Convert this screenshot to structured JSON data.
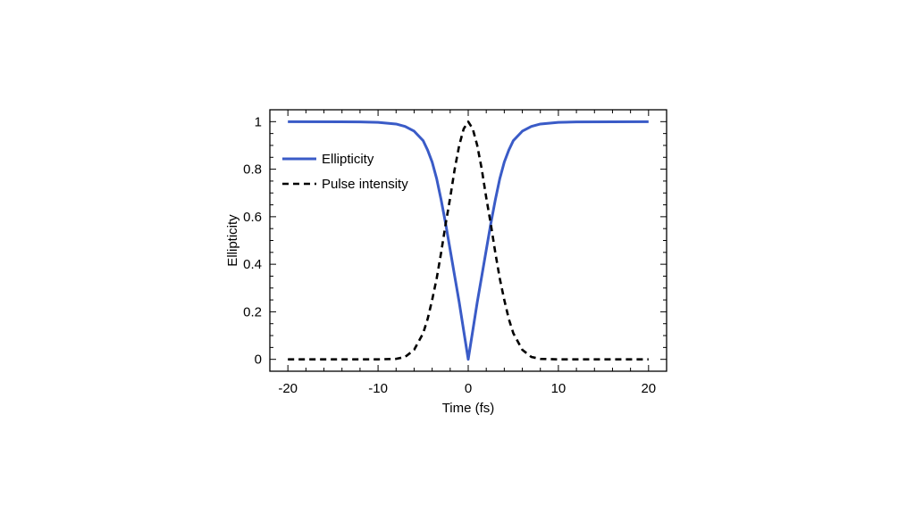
{
  "chart_data": {
    "type": "line",
    "title": "",
    "xlabel": "Time (fs)",
    "ylabel": "Ellipticity",
    "xlim": [
      -22,
      22
    ],
    "ylim": [
      -0.05,
      1.05
    ],
    "xticks": [
      -20,
      -10,
      0,
      10,
      20
    ],
    "xtick_labels": [
      "-20",
      "-10",
      "0",
      "10",
      "20"
    ],
    "yticks": [
      0,
      0.2,
      0.4,
      0.6,
      0.8,
      1
    ],
    "ytick_labels": [
      "0",
      "0.2",
      "0.4",
      "0.6",
      "0.8",
      "1"
    ],
    "grid": false,
    "legend_position": "top-left",
    "series": [
      {
        "name": "Ellipticity",
        "style": "solid",
        "color": "#3a5bc7",
        "x": [
          -20,
          -12,
          -10,
          -8,
          -7,
          -6,
          -5,
          -4.5,
          -4,
          -3.5,
          -3,
          -2.5,
          -2,
          -1.5,
          -1,
          -0.5,
          0,
          0.5,
          1,
          1.5,
          2,
          2.5,
          3,
          3.5,
          4,
          4.5,
          5,
          6,
          7,
          8,
          10,
          12,
          20
        ],
        "y": [
          1.0,
          0.999,
          0.997,
          0.99,
          0.98,
          0.96,
          0.92,
          0.88,
          0.83,
          0.76,
          0.67,
          0.57,
          0.46,
          0.35,
          0.24,
          0.12,
          0.0,
          0.12,
          0.24,
          0.35,
          0.46,
          0.57,
          0.67,
          0.76,
          0.83,
          0.88,
          0.92,
          0.96,
          0.98,
          0.99,
          0.997,
          0.999,
          1.0
        ]
      },
      {
        "name": "Pulse intensity",
        "style": "dashed",
        "color": "#000000",
        "x": [
          -20,
          -10,
          -8,
          -7,
          -6,
          -5,
          -4.5,
          -4,
          -3.5,
          -3,
          -2.5,
          -2,
          -1.5,
          -1,
          -0.5,
          0,
          0.5,
          1,
          1.5,
          2,
          2.5,
          3,
          3.5,
          4,
          4.5,
          5,
          6,
          7,
          8,
          10,
          20
        ],
        "y": [
          0.0,
          0.0,
          0.002,
          0.01,
          0.04,
          0.11,
          0.17,
          0.25,
          0.34,
          0.45,
          0.57,
          0.68,
          0.8,
          0.9,
          0.97,
          1.0,
          0.97,
          0.9,
          0.8,
          0.68,
          0.57,
          0.45,
          0.34,
          0.25,
          0.17,
          0.11,
          0.04,
          0.01,
          0.002,
          0.0,
          0.0
        ]
      }
    ]
  }
}
